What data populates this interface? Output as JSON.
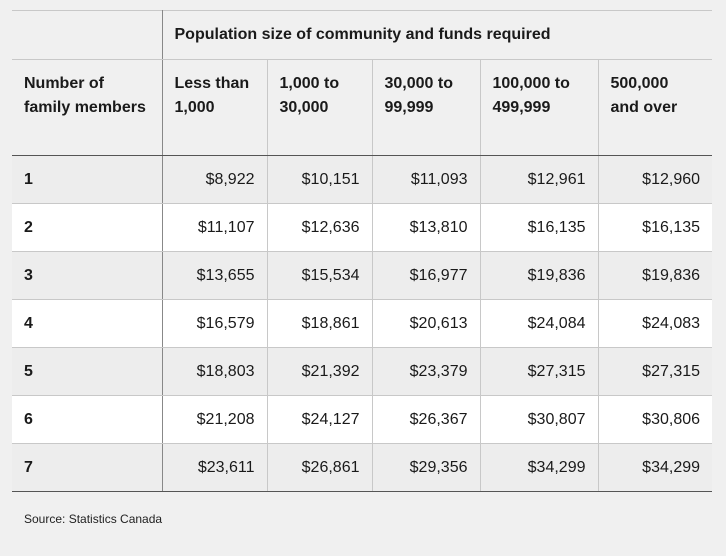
{
  "table": {
    "caption": "Population size of community and funds required",
    "row_header": "Number of family members",
    "columns": [
      "Less than 1,000",
      "1,000 to 30,000",
      "30,000 to 99,999",
      "100,000 to 499,999",
      "500,000 and over"
    ],
    "rows": [
      {
        "members": "1",
        "values": [
          "$8,922",
          "$10,151",
          "$11,093",
          "$12,961",
          "$12,960"
        ]
      },
      {
        "members": "2",
        "values": [
          "$11,107",
          "$12,636",
          "$13,810",
          "$16,135",
          "$16,135"
        ]
      },
      {
        "members": "3",
        "values": [
          "$13,655",
          "$15,534",
          "$16,977",
          "$19,836",
          "$19,836"
        ]
      },
      {
        "members": "4",
        "values": [
          "$16,579",
          "$18,861",
          "$20,613",
          "$24,084",
          "$24,083"
        ]
      },
      {
        "members": "5",
        "values": [
          "$18,803",
          "$21,392",
          "$23,379",
          "$27,315",
          "$27,315"
        ]
      },
      {
        "members": "6",
        "values": [
          "$21,208",
          "$24,127",
          "$26,367",
          "$30,807",
          "$30,806"
        ]
      },
      {
        "members": "7",
        "values": [
          "$23,611",
          "$26,861",
          "$29,356",
          "$34,299",
          "$34,299"
        ]
      }
    ]
  },
  "source": "Source: Statistics Canada"
}
